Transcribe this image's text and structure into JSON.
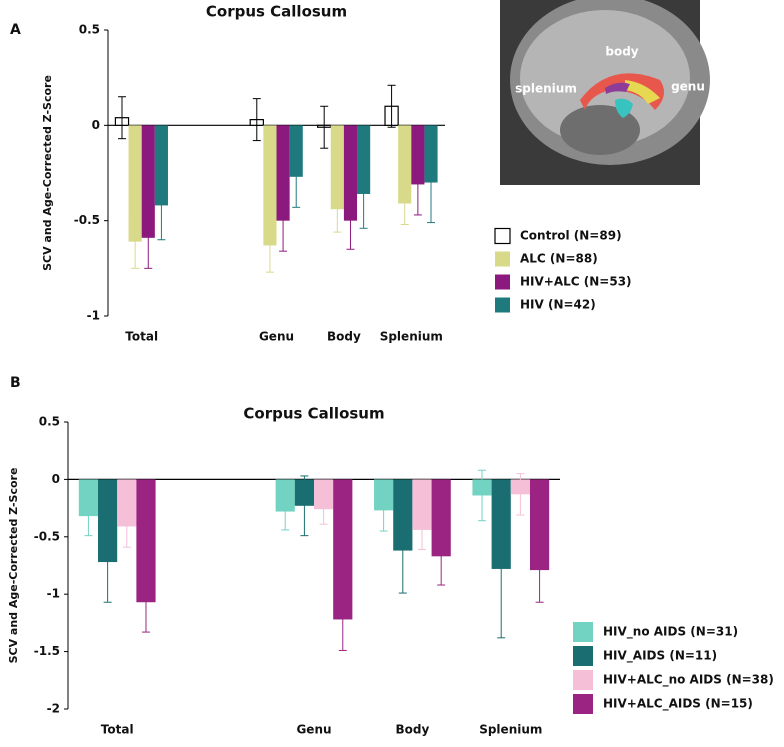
{
  "chart_data": [
    {
      "panel": "A",
      "type": "bar",
      "title": "Corpus Callosum",
      "ylabel": "SCV and Age-Corrected Z-Score",
      "categories": [
        "Total",
        null,
        "Genu",
        "Body",
        "Splenium"
      ],
      "ylim": [
        -1,
        0.5
      ],
      "yticks": [
        -1,
        -0.5,
        0,
        0.5
      ],
      "zero_line": true,
      "inset_labels": [
        "body",
        "splenium",
        "genu"
      ],
      "series": [
        {
          "name": "Control (N=89)",
          "color": "#ffffff",
          "edgecolor": "#000000",
          "values": [
            0.04,
            null,
            0.03,
            -0.01,
            0.1
          ],
          "errors": [
            0.11,
            null,
            0.11,
            0.11,
            0.11
          ]
        },
        {
          "name": "ALC (N=88)",
          "color": "#d9d98a",
          "values": [
            -0.61,
            null,
            -0.63,
            -0.44,
            -0.41
          ],
          "errors": [
            0.14,
            null,
            0.14,
            0.12,
            0.11
          ]
        },
        {
          "name": "HIV+ALC (N=53)",
          "color": "#8c1a7e",
          "values": [
            -0.59,
            null,
            -0.5,
            -0.5,
            -0.31
          ],
          "errors": [
            0.16,
            null,
            0.16,
            0.15,
            0.16
          ]
        },
        {
          "name": "HIV (N=42)",
          "color": "#1f7a7e",
          "values": [
            -0.42,
            null,
            -0.27,
            -0.36,
            -0.3
          ],
          "errors": [
            0.18,
            null,
            0.16,
            0.18,
            0.21
          ]
        }
      ]
    },
    {
      "panel": "B",
      "type": "bar",
      "title": "Corpus Callosum",
      "ylabel": "SCV and Age-Corrected Z-Score",
      "categories": [
        "Total",
        null,
        "Genu",
        "Body",
        "Splenium"
      ],
      "ylim": [
        -2,
        0.5
      ],
      "yticks": [
        -2,
        -1.5,
        -1,
        -0.5,
        0,
        0.5
      ],
      "zero_line": true,
      "series": [
        {
          "name": "HIV_no AIDS (N=31)",
          "color": "#72d3c3",
          "values": [
            -0.32,
            null,
            -0.28,
            -0.27,
            -0.14
          ],
          "errors": [
            0.17,
            null,
            0.16,
            0.18,
            0.22
          ]
        },
        {
          "name": "HIV_AIDS (N=11)",
          "color": "#1a6e72",
          "values": [
            -0.72,
            null,
            -0.23,
            -0.62,
            -0.78
          ],
          "errors": [
            0.35,
            null,
            0.26,
            0.37,
            0.6
          ]
        },
        {
          "name": "HIV+ALC_no AIDS (N=38)",
          "color": "#f5bfd7",
          "values": [
            -0.41,
            null,
            -0.26,
            -0.44,
            -0.13
          ],
          "errors": [
            0.18,
            null,
            0.13,
            0.17,
            0.18
          ]
        },
        {
          "name": "HIV+ALC_AIDS (N=15)",
          "color": "#9b2483",
          "values": [
            -1.07,
            null,
            -1.22,
            -0.67,
            -0.79
          ],
          "errors": [
            0.26,
            null,
            0.27,
            0.25,
            0.28
          ]
        }
      ]
    }
  ]
}
